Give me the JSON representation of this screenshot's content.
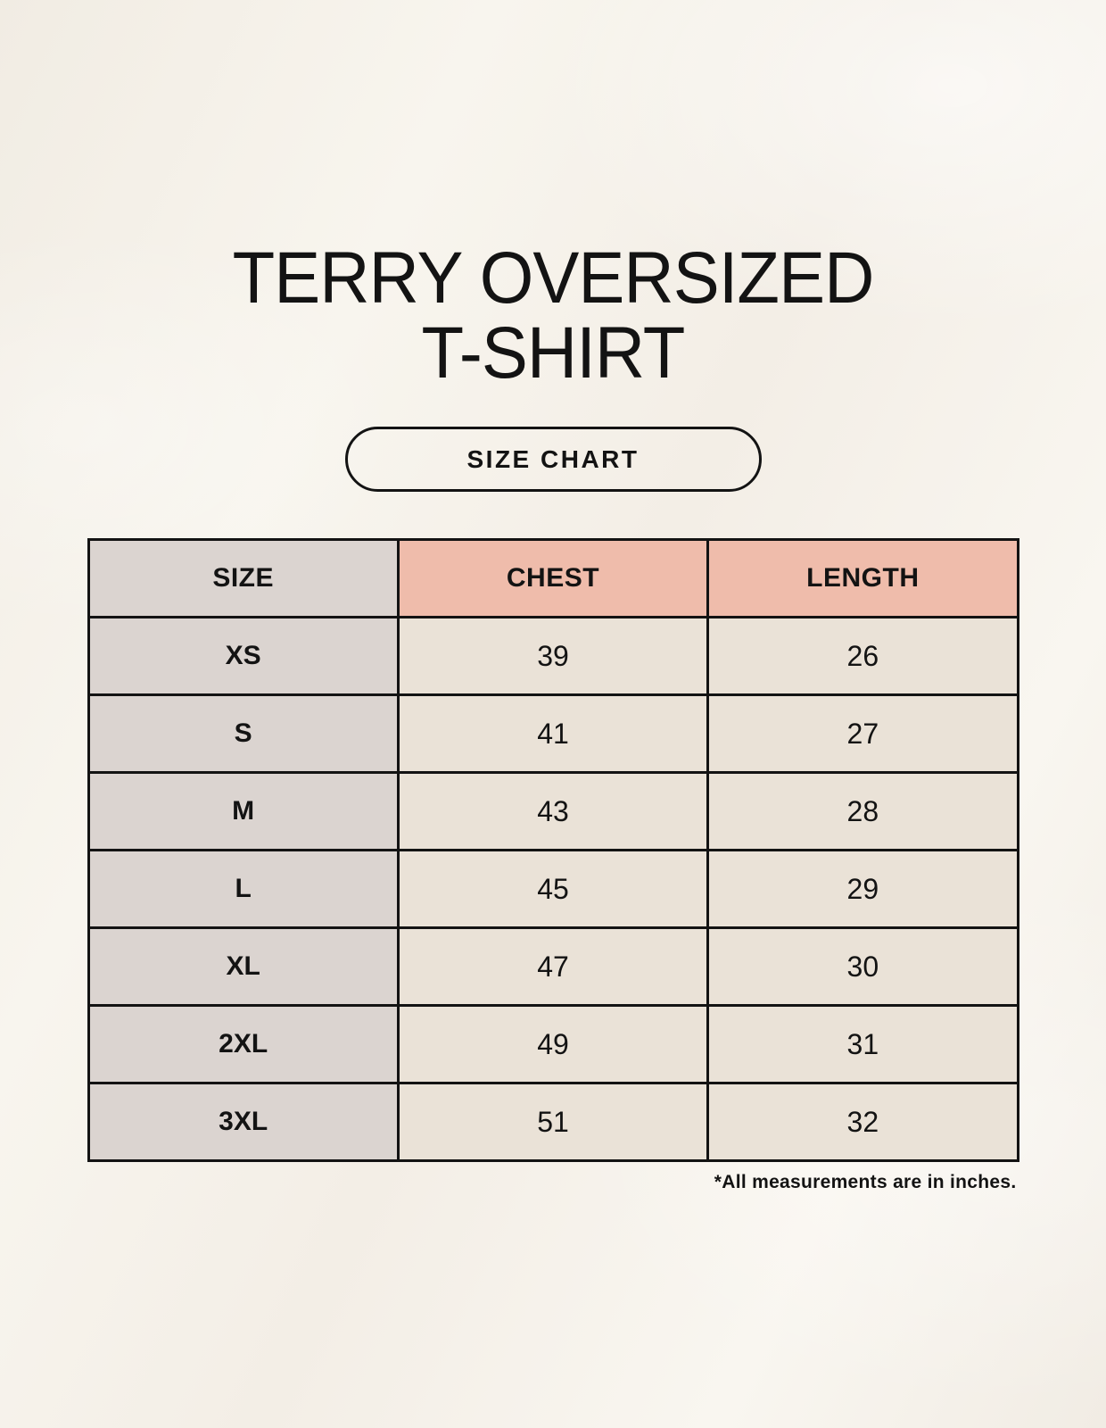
{
  "page": {
    "title_line1": "TERRY OVERSIZED",
    "title_line2": "T-SHIRT",
    "button_label": "SIZE CHART",
    "footnote": "*All measurements are in inches."
  },
  "colors": {
    "background": "#f6f2eb",
    "header_accent": "#efbcab",
    "size_column": "#dbd4d0",
    "cell_beige": "#eae2d7",
    "table_border": "#131313"
  },
  "chart_data": {
    "type": "table",
    "title": "TERRY OVERSIZED T-SHIRT",
    "subtitle": "SIZE CHART",
    "columns": [
      "SIZE",
      "CHEST",
      "LENGTH"
    ],
    "rows": [
      {
        "size": "XS",
        "chest": 39,
        "length": 26
      },
      {
        "size": "S",
        "chest": 41,
        "length": 27
      },
      {
        "size": "M",
        "chest": 43,
        "length": 28
      },
      {
        "size": "L",
        "chest": 45,
        "length": 29
      },
      {
        "size": "XL",
        "chest": 47,
        "length": 30
      },
      {
        "size": "2XL",
        "chest": 49,
        "length": 31
      },
      {
        "size": "3XL",
        "chest": 51,
        "length": 32
      }
    ],
    "units_note": "*All measurements are in inches.",
    "layout": {
      "header_fill": "accent-pink on CHEST/LENGTH, gray on SIZE",
      "grid": "on"
    }
  }
}
